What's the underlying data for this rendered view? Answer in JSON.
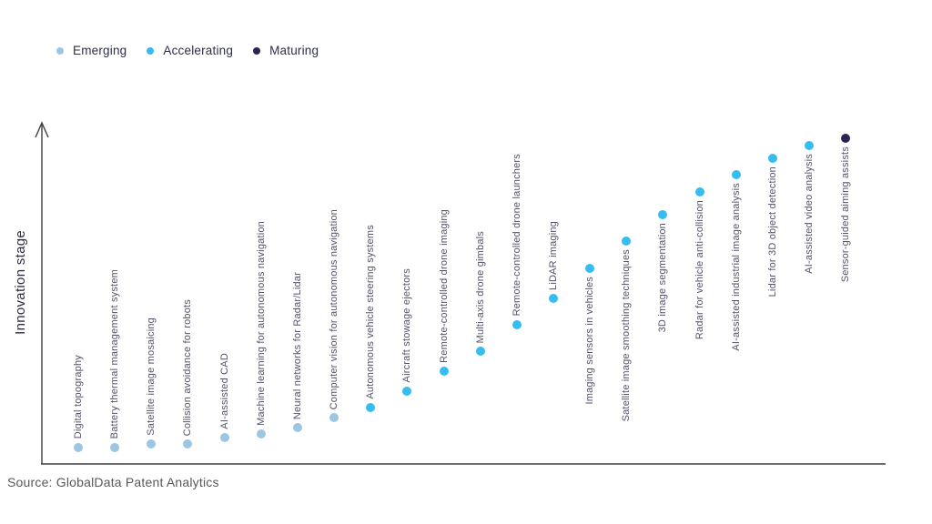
{
  "legend": {
    "items": [
      {
        "label": "Emerging",
        "color": "#9cc6e1"
      },
      {
        "label": "Accelerating",
        "color": "#35bdf2"
      },
      {
        "label": "Maturing",
        "color": "#2e2452"
      }
    ]
  },
  "axis": {
    "y_label": "Innovation stage"
  },
  "source": "Source: GlobalData Patent Analytics",
  "colors": {
    "axis_line": "#3f3f3f",
    "label_text": "#53536a",
    "legend_text": "#2d2d49",
    "source_text": "#58585a"
  },
  "chart_data": {
    "type": "scatter",
    "title": "",
    "xlabel": "",
    "ylabel": "Innovation stage",
    "ylim": [
      0,
      100
    ],
    "grid": false,
    "legend_position": "top-left",
    "stages": [
      "Emerging",
      "Accelerating",
      "Maturing"
    ],
    "items": [
      {
        "label": "Digital topography",
        "stage": "Emerging",
        "value": 5
      },
      {
        "label": "Battery thermal management system",
        "stage": "Emerging",
        "value": 5
      },
      {
        "label": "Satellite image mosaicing",
        "stage": "Emerging",
        "value": 6
      },
      {
        "label": "Collision avoidance for robots",
        "stage": "Emerging",
        "value": 6
      },
      {
        "label": "AI-assisted CAD",
        "stage": "Emerging",
        "value": 8
      },
      {
        "label": "Machine learning for autonomous navigation",
        "stage": "Emerging",
        "value": 9
      },
      {
        "label": "Neural networks for Radar/Lidar",
        "stage": "Emerging",
        "value": 11
      },
      {
        "label": "Computer vision for autonomous navigation",
        "stage": "Emerging",
        "value": 14
      },
      {
        "label": "Autonomous vehicle steering systems",
        "stage": "Accelerating",
        "value": 17
      },
      {
        "label": "Aircraft stowage ejectors",
        "stage": "Accelerating",
        "value": 22
      },
      {
        "label": "Remote-controlled drone imaging",
        "stage": "Accelerating",
        "value": 28
      },
      {
        "label": "Multi-axis drone gimbals",
        "stage": "Accelerating",
        "value": 34
      },
      {
        "label": "Remote-controlled drone launchers",
        "stage": "Accelerating",
        "value": 42
      },
      {
        "label": "LiDAR imaging",
        "stage": "Accelerating",
        "value": 50
      },
      {
        "label": "Imaging sensors in vehicles",
        "stage": "Accelerating",
        "value": 59
      },
      {
        "label": "Satellite image smoothing techniques",
        "stage": "Accelerating",
        "value": 67
      },
      {
        "label": "3D image segmentation",
        "stage": "Accelerating",
        "value": 75
      },
      {
        "label": "Radar for vehicle anti-collision",
        "stage": "Accelerating",
        "value": 82
      },
      {
        "label": "AI-assisted industrial image analysis",
        "stage": "Accelerating",
        "value": 87
      },
      {
        "label": "Lidar for 3D object detection",
        "stage": "Accelerating",
        "value": 92
      },
      {
        "label": "AI-assisted video analysis",
        "stage": "Accelerating",
        "value": 96
      },
      {
        "label": "Sensor-guided aiming assists",
        "stage": "Maturing",
        "value": 98
      }
    ]
  }
}
